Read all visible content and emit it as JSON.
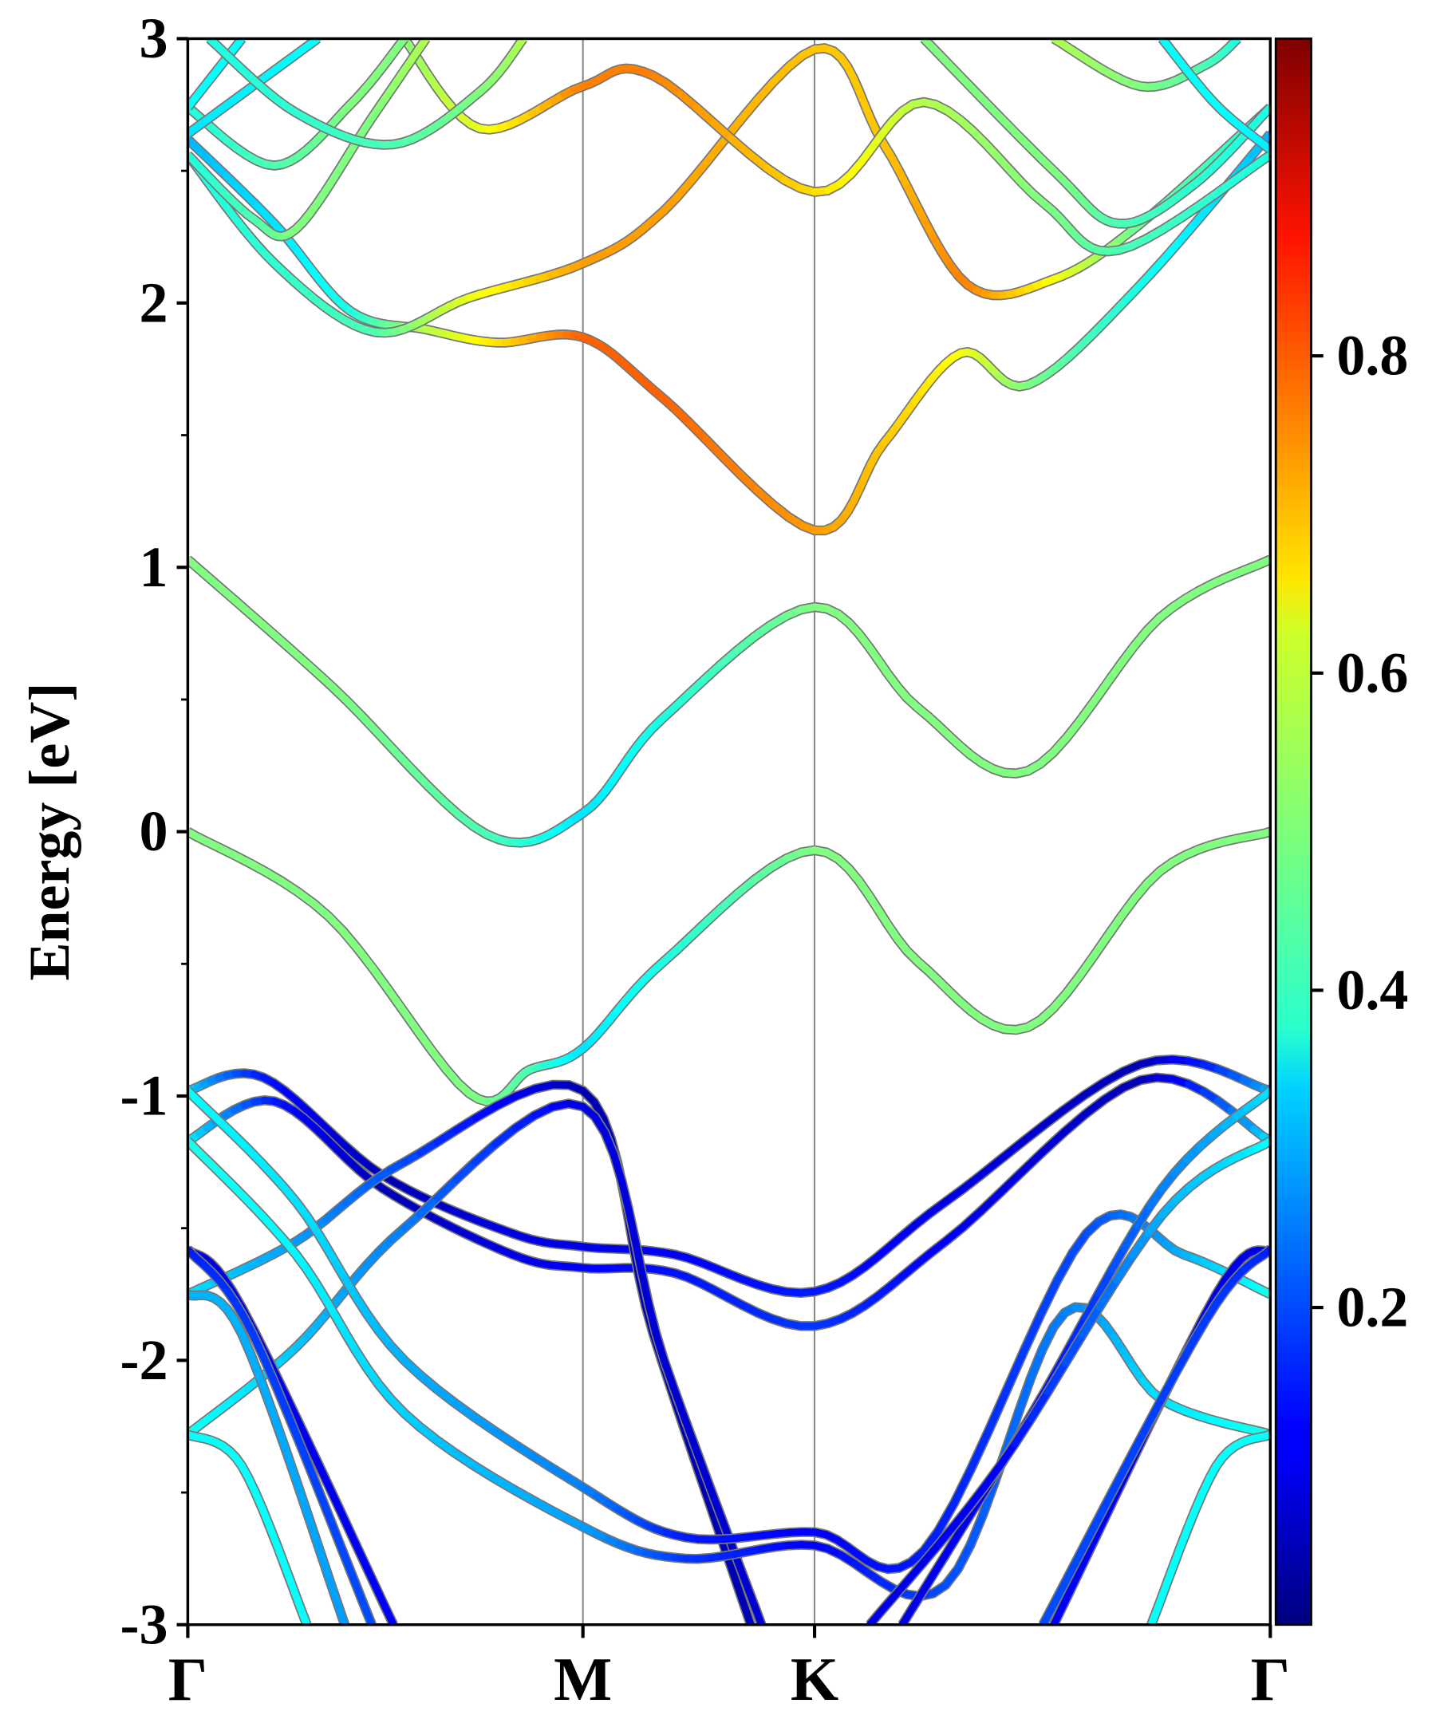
{
  "chart_data": {
    "type": "line",
    "title": "",
    "xlabel": "",
    "ylabel": "Energy [eV]",
    "ylim": [
      -3,
      3
    ],
    "xlim": [
      0,
      1
    ],
    "yticks": [
      {
        "v": 3,
        "label": "3"
      },
      {
        "v": 2,
        "label": "2"
      },
      {
        "v": 1,
        "label": "1"
      },
      {
        "v": 0,
        "label": "0"
      },
      {
        "v": -1,
        "label": "-1"
      },
      {
        "v": -2,
        "label": "-2"
      },
      {
        "v": -3,
        "label": "-3"
      }
    ],
    "kpoints": [
      {
        "k": 0,
        "label": "Γ"
      },
      {
        "k": 0.365,
        "label": "M"
      },
      {
        "k": 0.579,
        "label": "K"
      },
      {
        "k": 1,
        "label": "Γ"
      }
    ],
    "colorbar": {
      "colormap": "jet",
      "range": [
        0,
        1
      ],
      "ticks": [
        {
          "v": 0.2,
          "label": "0.2"
        },
        {
          "v": 0.4,
          "label": "0.4"
        },
        {
          "v": 0.6,
          "label": "0.6"
        },
        {
          "v": 0.8,
          "label": "0.8"
        }
      ]
    },
    "point_format": [
      "k",
      "energy_eV",
      "weight"
    ],
    "bands": [
      [
        [
          0,
          0,
          0.5
        ],
        [
          0.13,
          -0.32,
          0.5
        ],
        [
          0.26,
          -0.99,
          0.5
        ],
        [
          0.316,
          -0.9,
          0.45
        ],
        [
          0.365,
          -0.82,
          0.35
        ],
        [
          0.44,
          -0.49,
          0.4
        ],
        [
          0.579,
          -0.07,
          0.5
        ],
        [
          0.674,
          -0.49,
          0.5
        ],
        [
          0.776,
          -0.74,
          0.5
        ],
        [
          0.898,
          -0.15,
          0.5
        ],
        [
          1,
          0,
          0.5
        ]
      ],
      [
        [
          0,
          1.03,
          0.5
        ],
        [
          0.133,
          0.55,
          0.5
        ],
        [
          0.276,
          -0.01,
          0.45
        ],
        [
          0.365,
          0.07,
          0.35
        ],
        [
          0.439,
          0.43,
          0.4
        ],
        [
          0.579,
          0.85,
          0.5
        ],
        [
          0.674,
          0.47,
          0.5
        ],
        [
          0.776,
          0.23,
          0.5
        ],
        [
          0.898,
          0.81,
          0.5
        ],
        [
          1,
          1.03,
          0.5
        ]
      ],
      [
        [
          0,
          2.62,
          0.3
        ],
        [
          0.08,
          2.3,
          0.35
        ],
        [
          0.15,
          1.97,
          0.4
        ],
        [
          0.22,
          1.9,
          0.55
        ],
        [
          0.286,
          1.85,
          0.65
        ],
        [
          0.365,
          1.87,
          0.78
        ],
        [
          0.439,
          1.64,
          0.78
        ],
        [
          0.579,
          1.14,
          0.72
        ],
        [
          0.643,
          1.47,
          0.68
        ],
        [
          0.714,
          1.81,
          0.62
        ],
        [
          0.776,
          1.69,
          0.5
        ],
        [
          0.878,
          2.06,
          0.4
        ],
        [
          1,
          2.64,
          0.3
        ]
      ],
      [
        [
          0,
          2.56,
          0.4
        ],
        [
          0.08,
          2.15,
          0.42
        ],
        [
          0.173,
          1.89,
          0.45
        ],
        [
          0.26,
          2.02,
          0.6
        ],
        [
          0.365,
          2.15,
          0.72
        ],
        [
          0.44,
          2.35,
          0.72
        ],
        [
          0.579,
          2.96,
          0.68
        ],
        [
          0.643,
          2.6,
          0.68
        ],
        [
          0.72,
          2.07,
          0.75
        ],
        [
          0.8,
          2.09,
          0.62
        ],
        [
          0.88,
          2.3,
          0.48
        ],
        [
          1,
          2.74,
          0.4
        ]
      ],
      [
        [
          0.2,
          3.0,
          0.5
        ],
        [
          0.27,
          2.66,
          0.6
        ],
        [
          0.365,
          2.82,
          0.75
        ],
        [
          0.43,
          2.86,
          0.75
        ],
        [
          0.579,
          2.42,
          0.66
        ],
        [
          0.68,
          2.76,
          0.55
        ],
        [
          0.79,
          2.38,
          0.5
        ],
        [
          0.86,
          2.2,
          0.45
        ],
        [
          1,
          2.56,
          0.4
        ]
      ],
      [
        [
          0,
          2.74,
          0.4
        ],
        [
          0.08,
          2.52,
          0.45
        ],
        [
          0.15,
          2.75,
          0.5
        ],
        [
          0.2,
          3.0,
          0.5
        ]
      ],
      [
        [
          0,
          2.56,
          0.4
        ],
        [
          0.06,
          2.32,
          0.45
        ],
        [
          0.1,
          2.28,
          0.5
        ],
        [
          0.17,
          2.7,
          0.5
        ],
        [
          0.22,
          3.0,
          0.55
        ]
      ],
      [
        [
          0,
          2.74,
          0.38
        ],
        [
          0.05,
          3.0,
          0.38
        ]
      ],
      [
        [
          0,
          2.64,
          0.35
        ],
        [
          0.12,
          3.0,
          0.38
        ]
      ],
      [
        [
          0.02,
          3.0,
          0.4
        ],
        [
          0.1,
          2.72,
          0.42
        ],
        [
          0.19,
          2.6,
          0.45
        ],
        [
          0.27,
          2.8,
          0.5
        ],
        [
          0.31,
          3.0,
          0.55
        ]
      ],
      [
        [
          0.68,
          3.0,
          0.5
        ],
        [
          0.8,
          2.5,
          0.5
        ],
        [
          0.86,
          2.3,
          0.45
        ],
        [
          0.93,
          2.45,
          0.42
        ],
        [
          1,
          2.74,
          0.4
        ]
      ],
      [
        [
          0.8,
          3.0,
          0.55
        ],
        [
          0.88,
          2.82,
          0.5
        ],
        [
          0.94,
          2.9,
          0.45
        ],
        [
          0.97,
          3.0,
          0.4
        ]
      ],
      [
        [
          0.9,
          3.0,
          0.38
        ],
        [
          0.95,
          2.75,
          0.38
        ],
        [
          1,
          2.58,
          0.36
        ]
      ],
      [
        [
          0,
          -0.98,
          0.35
        ],
        [
          0.07,
          -0.93,
          0.15
        ],
        [
          0.18,
          -1.3,
          0.05
        ],
        [
          0.3,
          -1.52,
          0.1
        ],
        [
          0.365,
          -1.57,
          0.1
        ],
        [
          0.45,
          -1.6,
          0.12
        ],
        [
          0.579,
          -1.74,
          0.15
        ],
        [
          0.7,
          -1.4,
          0.1
        ],
        [
          0.88,
          -0.88,
          0.05
        ],
        [
          1,
          -0.98,
          0.3
        ]
      ],
      [
        [
          0,
          -1.17,
          0.38
        ],
        [
          0.08,
          -1.02,
          0.15
        ],
        [
          0.18,
          -1.35,
          0.05
        ],
        [
          0.3,
          -1.6,
          0.1
        ],
        [
          0.365,
          -1.65,
          0.12
        ],
        [
          0.45,
          -1.67,
          0.14
        ],
        [
          0.579,
          -1.87,
          0.18
        ],
        [
          0.7,
          -1.55,
          0.12
        ],
        [
          0.88,
          -0.94,
          0.05
        ],
        [
          1,
          -1.17,
          0.35
        ]
      ],
      [
        [
          0,
          -1.75,
          0.35
        ],
        [
          0.1,
          -1.55,
          0.28
        ],
        [
          0.2,
          -1.25,
          0.2
        ],
        [
          0.365,
          -0.98,
          0.05
        ],
        [
          0.43,
          -1.9,
          0.05
        ],
        [
          0.52,
          -3.0,
          0.05
        ]
      ],
      [
        [
          0,
          -2.28,
          0.4
        ],
        [
          0.1,
          -1.95,
          0.32
        ],
        [
          0.2,
          -1.5,
          0.25
        ],
        [
          0.365,
          -1.04,
          0.1
        ],
        [
          0.44,
          -2.0,
          0.08
        ],
        [
          0.53,
          -3.0,
          0.08
        ]
      ],
      [
        [
          0,
          -0.98,
          0.38
        ],
        [
          0.1,
          -1.4,
          0.35
        ],
        [
          0.2,
          -2.0,
          0.3
        ],
        [
          0.365,
          -2.48,
          0.25
        ],
        [
          0.46,
          -2.67,
          0.15
        ],
        [
          0.579,
          -2.65,
          0.12
        ],
        [
          0.68,
          -2.72,
          0.15
        ],
        [
          0.83,
          -1.52,
          0.2
        ],
        [
          0.92,
          -1.6,
          0.3
        ],
        [
          1,
          -1.75,
          0.4
        ]
      ],
      [
        [
          0,
          -1.17,
          0.4
        ],
        [
          0.1,
          -1.6,
          0.37
        ],
        [
          0.2,
          -2.2,
          0.33
        ],
        [
          0.365,
          -2.63,
          0.28
        ],
        [
          0.46,
          -2.75,
          0.18
        ],
        [
          0.579,
          -2.7,
          0.12
        ],
        [
          0.7,
          -2.85,
          0.2
        ],
        [
          0.81,
          -1.82,
          0.25
        ],
        [
          0.9,
          -2.15,
          0.35
        ],
        [
          1,
          -2.28,
          0.4
        ]
      ],
      [
        [
          0,
          -1.58,
          0.1
        ],
        [
          0.05,
          -1.8,
          0.1
        ],
        [
          0.19,
          -3.0,
          0.12
        ]
      ],
      [
        [
          0,
          -1.58,
          0.15
        ],
        [
          0.06,
          -1.9,
          0.18
        ],
        [
          0.17,
          -3.0,
          0.2
        ]
      ],
      [
        [
          0,
          -2.28,
          0.38
        ],
        [
          0.05,
          -2.4,
          0.38
        ],
        [
          0.11,
          -3.0,
          0.38
        ]
      ],
      [
        [
          0,
          -1.75,
          0.3
        ],
        [
          0.05,
          -1.9,
          0.3
        ],
        [
          0.145,
          -3.0,
          0.28
        ]
      ],
      [
        [
          1,
          -1.58,
          0.1
        ],
        [
          0.95,
          -1.75,
          0.1
        ],
        [
          0.8,
          -3.0,
          0.12
        ]
      ],
      [
        [
          1,
          -1.58,
          0.15
        ],
        [
          0.94,
          -1.85,
          0.18
        ],
        [
          0.79,
          -3.0,
          0.2
        ]
      ],
      [
        [
          1,
          -2.28,
          0.38
        ],
        [
          0.95,
          -2.4,
          0.38
        ],
        [
          0.89,
          -3.0,
          0.38
        ]
      ],
      [
        [
          0.66,
          -3.0,
          0.1
        ],
        [
          0.78,
          -2.2,
          0.12
        ],
        [
          0.9,
          -1.35,
          0.25
        ],
        [
          1,
          -0.98,
          0.35
        ]
      ],
      [
        [
          0.63,
          -3.0,
          0.1
        ],
        [
          0.75,
          -2.4,
          0.12
        ],
        [
          0.9,
          -1.45,
          0.3
        ],
        [
          1,
          -1.17,
          0.38
        ]
      ]
    ]
  }
}
